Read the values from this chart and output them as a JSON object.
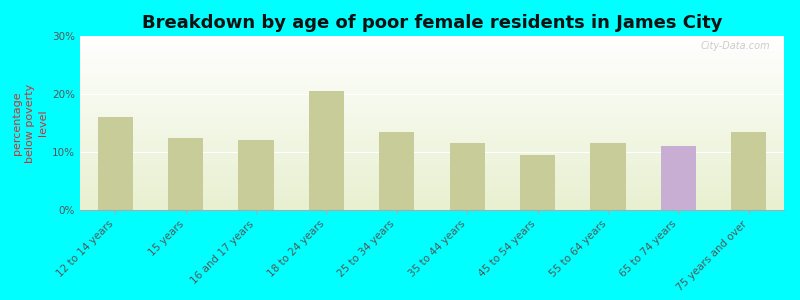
{
  "title": "Breakdown by age of poor female residents in James City",
  "ylabel": "percentage\nbelow poverty\nlevel",
  "categories": [
    "12 to 14 years",
    "15 years",
    "16 and 17 years",
    "18 to 24 years",
    "25 to 34 years",
    "35 to 44 years",
    "45 to 54 years",
    "55 to 64 years",
    "65 to 74 years",
    "75 years and over"
  ],
  "james_city_values": [
    null,
    null,
    null,
    null,
    null,
    null,
    null,
    null,
    11.0,
    null
  ],
  "pennsylvania_values": [
    16.0,
    12.5,
    12.0,
    20.5,
    13.5,
    11.5,
    9.5,
    11.5,
    10.5,
    13.5
  ],
  "james_city_color": "#c9aed4",
  "pennsylvania_color": "#c8cc99",
  "background_color": "#00ffff",
  "plot_bg_top": "#e8f0d0",
  "ylim": [
    0,
    30
  ],
  "yticks": [
    0,
    10,
    20,
    30
  ],
  "ytick_labels": [
    "0%",
    "10%",
    "20%",
    "30%"
  ],
  "bar_width": 0.5,
  "title_fontsize": 13,
  "axis_label_fontsize": 8,
  "tick_fontsize": 7.5,
  "legend_fontsize": 9,
  "watermark": "City-Data.com"
}
